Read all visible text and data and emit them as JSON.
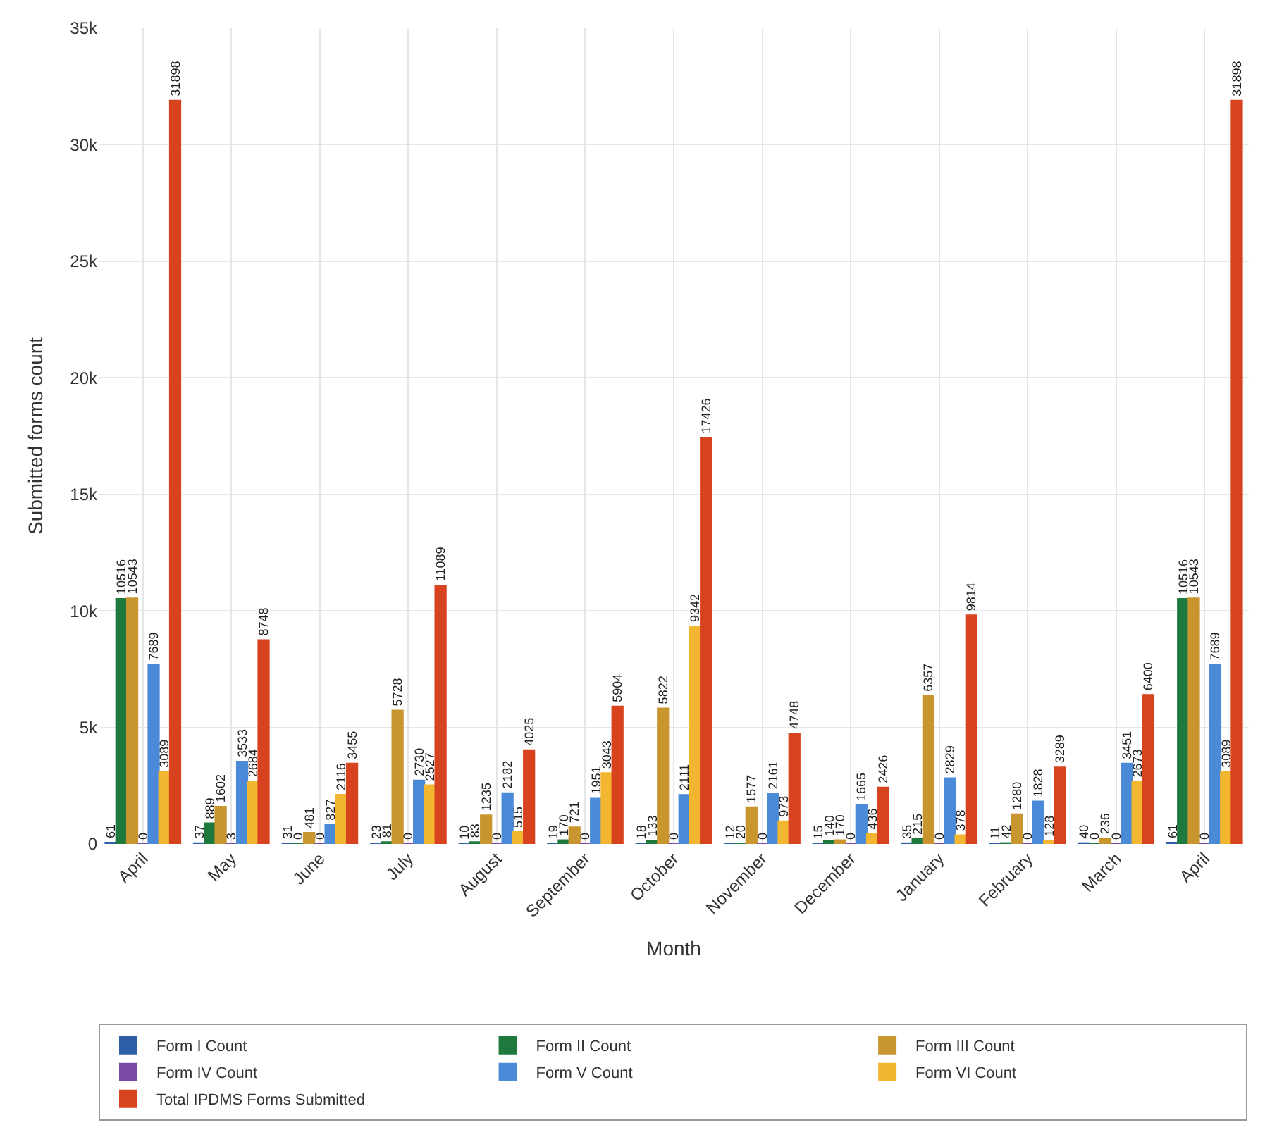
{
  "chart_data": {
    "type": "bar",
    "xlabel": "Month",
    "ylabel": "Submitted forms count",
    "categories": [
      "April",
      "May",
      "June",
      "July",
      "August",
      "September",
      "October",
      "November",
      "December",
      "January",
      "February",
      "March",
      "April"
    ],
    "series": [
      {
        "name": "Form I Count",
        "color": "#2f5ea8",
        "values": [
          61,
          37,
          31,
          23,
          10,
          19,
          18,
          12,
          15,
          35,
          11,
          40,
          61
        ]
      },
      {
        "name": "Form II Count",
        "color": "#1e7a3c",
        "values": [
          10516,
          889,
          0,
          81,
          83,
          170,
          133,
          20,
          140,
          215,
          42,
          0,
          10516
        ]
      },
      {
        "name": "Form III Count",
        "color": "#c8952f",
        "values": [
          10543,
          1602,
          481,
          5728,
          1235,
          721,
          5822,
          1577,
          170,
          6357,
          1280,
          236,
          10543
        ]
      },
      {
        "name": "Form IV Count",
        "color": "#7b4aa6",
        "values": [
          0,
          3,
          0,
          0,
          0,
          0,
          0,
          0,
          0,
          0,
          0,
          0,
          0
        ]
      },
      {
        "name": "Form V Count",
        "color": "#4a8ad8",
        "values": [
          7689,
          3533,
          827,
          2730,
          2182,
          1951,
          2111,
          2161,
          1665,
          2829,
          1828,
          3451,
          7689
        ]
      },
      {
        "name": "Form VI Count",
        "color": "#f2b630",
        "values": [
          3089,
          2684,
          2116,
          2527,
          515,
          3043,
          9342,
          973,
          436,
          378,
          128,
          2673,
          3089
        ]
      },
      {
        "name": "Total IPDMS Forms Submitted",
        "color": "#d8431f",
        "values": [
          31898,
          8748,
          3455,
          11089,
          4025,
          5904,
          17426,
          4748,
          2426,
          9814,
          3289,
          6400,
          31898
        ]
      }
    ],
    "ylim": [
      0,
      35000
    ],
    "yticks": [
      0,
      {
        "value": 5000,
        "label": "5k"
      },
      {
        "value": 10000,
        "label": "10k"
      },
      {
        "value": 15000,
        "label": "15k"
      },
      {
        "value": 20000,
        "label": "20k"
      },
      {
        "value": 25000,
        "label": "25k"
      },
      {
        "value": 30000,
        "label": "30k"
      },
      {
        "value": 35000,
        "label": "35k"
      }
    ],
    "data_labels": true,
    "grid": true,
    "legend": "bottom"
  }
}
